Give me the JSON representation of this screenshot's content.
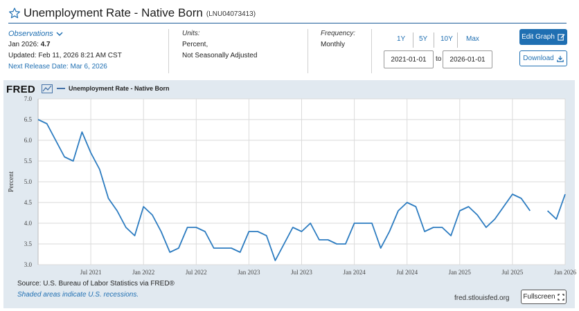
{
  "header": {
    "title": "Unemployment Rate - Native Born",
    "series_id": "(LNU04073413)"
  },
  "observations": {
    "link_label": "Observations",
    "date": "Jan 2026:",
    "value": "4.7",
    "updated": "Updated: Feb 11, 2026 8:21 AM CST",
    "next_release": "Next Release Date: Mar 6, 2026"
  },
  "units": {
    "label": "Units:",
    "line1": "Percent,",
    "line2": "Not Seasonally Adjusted"
  },
  "frequency": {
    "label": "Frequency:",
    "value": "Monthly"
  },
  "range": {
    "buttons": [
      "1Y",
      "5Y",
      "10Y",
      "Max"
    ],
    "start": "2021-01-01",
    "to_label": "to",
    "end": "2026-01-01"
  },
  "actions": {
    "edit_graph": "Edit Graph",
    "download": "Download",
    "fullscreen": "Fullscreen"
  },
  "footer": {
    "source": "Source: U.S. Bureau of Labor Statistics via FRED®",
    "shaded": "Shaded areas indicate U.S. recessions.",
    "url": "fred.stlouisfed.org"
  },
  "brand": {
    "logo": "FRED"
  },
  "colors": {
    "accent": "#1f6fb2",
    "line": "#2b7bc0",
    "panel": "#e1e9f0"
  },
  "chart_data": {
    "type": "line",
    "title": "",
    "ylabel": "Percent",
    "ylim": [
      3.0,
      7.0
    ],
    "yticks": [
      "3.0",
      "3.5",
      "4.0",
      "4.5",
      "5.0",
      "5.5",
      "6.0",
      "6.5",
      "7.0"
    ],
    "xticks": [
      "Jul 2021",
      "Jan 2022",
      "Jul 2022",
      "Jan 2023",
      "Jul 2023",
      "Jan 2024",
      "Jul 2024",
      "Jan 2025",
      "Jul 2025",
      "Jan 2026"
    ],
    "x_start": "2021-01",
    "x_end": "2026-01",
    "series": [
      {
        "name": "Unemployment Rate - Native Born",
        "values": [
          6.5,
          6.4,
          6.0,
          5.6,
          5.5,
          6.2,
          5.7,
          5.3,
          4.6,
          4.3,
          3.9,
          3.7,
          4.4,
          4.2,
          3.8,
          3.3,
          3.4,
          3.9,
          3.9,
          3.8,
          3.4,
          3.4,
          3.4,
          3.3,
          3.8,
          3.8,
          3.7,
          3.1,
          3.5,
          3.9,
          3.8,
          4.0,
          3.6,
          3.6,
          3.5,
          3.5,
          4.0,
          4.0,
          4.0,
          3.4,
          3.8,
          4.3,
          4.5,
          4.4,
          3.8,
          3.9,
          3.9,
          3.7,
          4.3,
          4.4,
          4.2,
          3.9,
          4.1,
          4.4,
          4.7,
          4.6,
          4.3,
          null,
          4.3,
          4.1,
          4.7
        ]
      }
    ]
  }
}
